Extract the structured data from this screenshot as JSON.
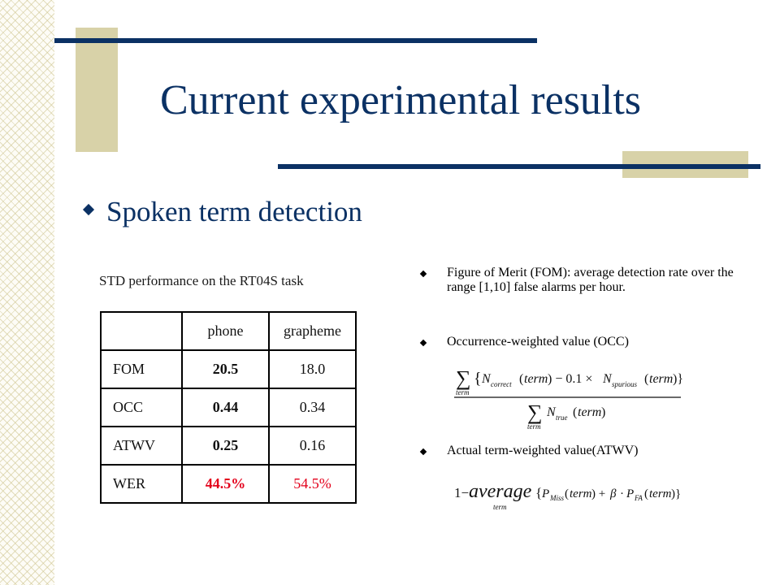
{
  "slide": {
    "title": "Current experimental results",
    "bullet": "Spoken term detection"
  },
  "table": {
    "caption": "STD performance on the RT04S task",
    "headers": [
      "",
      "phone",
      "grapheme"
    ],
    "rows": [
      [
        "FOM",
        "20.5",
        "18.0"
      ],
      [
        "OCC",
        "0.44",
        "0.34"
      ],
      [
        "ATWV",
        "0.25",
        "0.16"
      ],
      [
        "WER",
        "44.5%",
        "54.5%"
      ]
    ]
  },
  "notes": [
    "Figure of Merit (FOM): average detection rate over the range [1,10] false alarms per hour.",
    "Occurrence-weighted value (OCC)",
    "Actual term-weighted value(ATWV)"
  ],
  "colors": {
    "title": "#0b3164",
    "accent_bar": "#0b3164",
    "accent_block": "#d8d2a8",
    "highlight": "#e3001b"
  }
}
